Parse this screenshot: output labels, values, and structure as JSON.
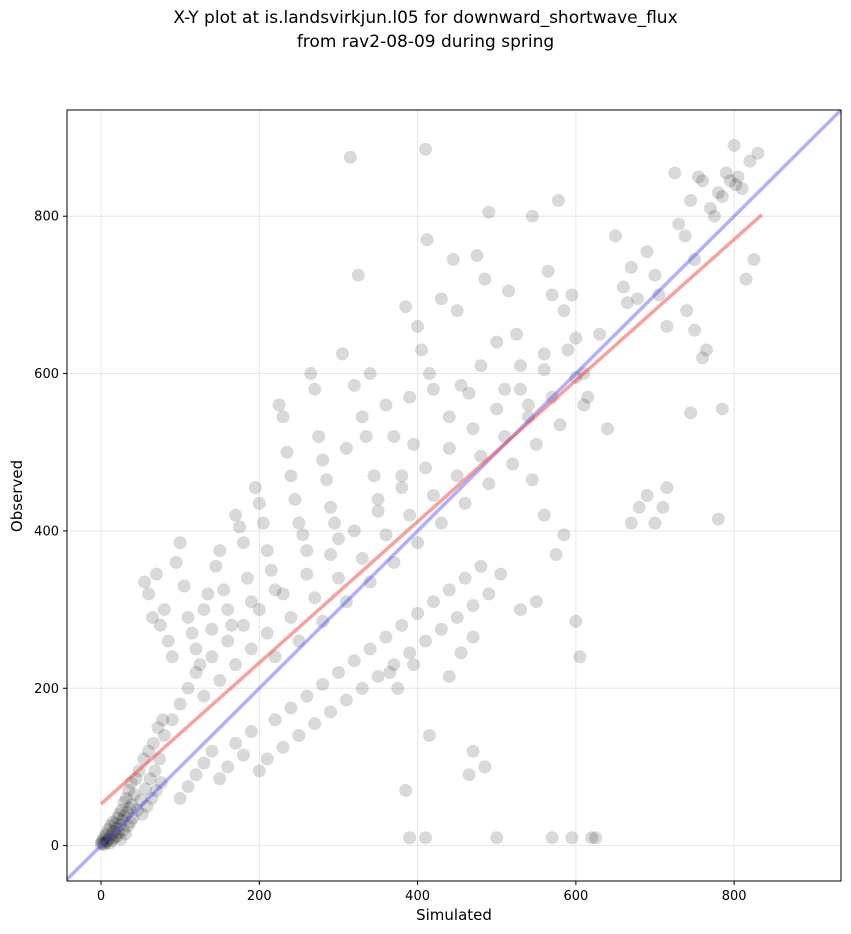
{
  "chart_data": {
    "type": "scatter",
    "title_line1": "X-Y plot at is.landsvirkjun.l05 for downward_shortwave_flux",
    "title_line2": "from rav2-08-09 during spring",
    "xlabel": "Simulated",
    "ylabel": "Observed",
    "xlim": [
      -43,
      935
    ],
    "ylim": [
      -45,
      935
    ],
    "xticks": [
      0,
      200,
      400,
      600,
      800
    ],
    "yticks": [
      0,
      200,
      400,
      600,
      800
    ],
    "grid": true,
    "colors": {
      "points": "#000000",
      "fit_line": "#ef4444",
      "one_to_one": "#4f4fff"
    },
    "fit_line": {
      "x": [
        0,
        835
      ],
      "y": [
        53,
        802
      ]
    },
    "one_to_one_line": {
      "x": [
        -43,
        935
      ],
      "y": [
        -43,
        935
      ]
    },
    "points": [
      [
        0,
        2
      ],
      [
        1,
        5
      ],
      [
        2,
        3
      ],
      [
        3,
        8
      ],
      [
        4,
        1
      ],
      [
        5,
        12
      ],
      [
        6,
        4
      ],
      [
        7,
        15
      ],
      [
        8,
        6
      ],
      [
        9,
        20
      ],
      [
        10,
        9
      ],
      [
        11,
        3
      ],
      [
        12,
        25
      ],
      [
        13,
        14
      ],
      [
        14,
        7
      ],
      [
        15,
        30
      ],
      [
        16,
        18
      ],
      [
        17,
        10
      ],
      [
        18,
        28
      ],
      [
        19,
        22
      ],
      [
        20,
        12
      ],
      [
        21,
        35
      ],
      [
        22,
        16
      ],
      [
        23,
        40
      ],
      [
        24,
        26
      ],
      [
        25,
        8
      ],
      [
        26,
        45
      ],
      [
        27,
        32
      ],
      [
        28,
        20
      ],
      [
        29,
        55
      ],
      [
        30,
        38
      ],
      [
        31,
        15
      ],
      [
        32,
        60
      ],
      [
        33,
        42
      ],
      [
        34,
        25
      ],
      [
        35,
        70
      ],
      [
        36,
        48
      ],
      [
        37,
        30
      ],
      [
        38,
        80
      ],
      [
        39,
        52
      ],
      [
        40,
        35
      ],
      [
        42,
        65
      ],
      [
        44,
        85
      ],
      [
        46,
        45
      ],
      [
        48,
        95
      ],
      [
        50,
        58
      ],
      [
        52,
        40
      ],
      [
        54,
        110
      ],
      [
        56,
        72
      ],
      [
        58,
        50
      ],
      [
        60,
        120
      ],
      [
        62,
        85
      ],
      [
        64,
        60
      ],
      [
        66,
        130
      ],
      [
        68,
        95
      ],
      [
        70,
        70
      ],
      [
        72,
        150
      ],
      [
        74,
        110
      ],
      [
        76,
        80
      ],
      [
        78,
        160
      ],
      [
        55,
        335
      ],
      [
        60,
        320
      ],
      [
        70,
        345
      ],
      [
        80,
        300
      ],
      [
        75,
        280
      ],
      [
        65,
        290
      ],
      [
        85,
        260
      ],
      [
        90,
        240
      ],
      [
        95,
        360
      ],
      [
        100,
        385
      ],
      [
        105,
        330
      ],
      [
        110,
        290
      ],
      [
        115,
        270
      ],
      [
        120,
        250
      ],
      [
        125,
        230
      ],
      [
        130,
        300
      ],
      [
        135,
        320
      ],
      [
        140,
        275
      ],
      [
        145,
        355
      ],
      [
        150,
        375
      ],
      [
        155,
        325
      ],
      [
        160,
        300
      ],
      [
        165,
        280
      ],
      [
        170,
        420
      ],
      [
        175,
        405
      ],
      [
        180,
        385
      ],
      [
        185,
        340
      ],
      [
        190,
        310
      ],
      [
        195,
        455
      ],
      [
        200,
        435
      ],
      [
        205,
        410
      ],
      [
        210,
        375
      ],
      [
        215,
        350
      ],
      [
        220,
        325
      ],
      [
        225,
        560
      ],
      [
        230,
        545
      ],
      [
        235,
        500
      ],
      [
        240,
        470
      ],
      [
        245,
        440
      ],
      [
        250,
        410
      ],
      [
        255,
        395
      ],
      [
        260,
        375
      ],
      [
        265,
        600
      ],
      [
        270,
        580
      ],
      [
        275,
        520
      ],
      [
        280,
        490
      ],
      [
        285,
        465
      ],
      [
        290,
        430
      ],
      [
        295,
        410
      ],
      [
        300,
        390
      ],
      [
        305,
        625
      ],
      [
        310,
        505
      ],
      [
        315,
        875
      ],
      [
        320,
        585
      ],
      [
        325,
        725
      ],
      [
        330,
        545
      ],
      [
        335,
        520
      ],
      [
        340,
        600
      ],
      [
        345,
        470
      ],
      [
        350,
        440
      ],
      [
        360,
        560
      ],
      [
        370,
        520
      ],
      [
        380,
        470
      ],
      [
        385,
        685
      ],
      [
        390,
        570
      ],
      [
        395,
        510
      ],
      [
        400,
        660
      ],
      [
        405,
        630
      ],
      [
        410,
        885
      ],
      [
        412,
        770
      ],
      [
        415,
        600
      ],
      [
        420,
        580
      ],
      [
        430,
        695
      ],
      [
        440,
        545
      ],
      [
        445,
        745
      ],
      [
        450,
        680
      ],
      [
        455,
        585
      ],
      [
        465,
        575
      ],
      [
        475,
        750
      ],
      [
        480,
        610
      ],
      [
        485,
        720
      ],
      [
        490,
        805
      ],
      [
        500,
        640
      ],
      [
        510,
        580
      ],
      [
        515,
        705
      ],
      [
        525,
        650
      ],
      [
        530,
        610
      ],
      [
        540,
        560
      ],
      [
        545,
        800
      ],
      [
        560,
        625
      ],
      [
        565,
        730
      ],
      [
        570,
        700
      ],
      [
        578,
        820
      ],
      [
        585,
        680
      ],
      [
        595,
        700
      ],
      [
        600,
        645
      ],
      [
        610,
        600
      ],
      [
        615,
        570
      ],
      [
        630,
        650
      ],
      [
        650,
        775
      ],
      [
        660,
        710
      ],
      [
        665,
        690
      ],
      [
        670,
        735
      ],
      [
        678,
        695
      ],
      [
        690,
        755
      ],
      [
        700,
        725
      ],
      [
        705,
        700
      ],
      [
        715,
        660
      ],
      [
        725,
        855
      ],
      [
        730,
        790
      ],
      [
        738,
        775
      ],
      [
        745,
        820
      ],
      [
        750,
        745
      ],
      [
        755,
        850
      ],
      [
        760,
        845
      ],
      [
        765,
        630
      ],
      [
        770,
        810
      ],
      [
        775,
        800
      ],
      [
        780,
        830
      ],
      [
        785,
        825
      ],
      [
        790,
        855
      ],
      [
        795,
        845
      ],
      [
        800,
        890
      ],
      [
        802,
        840
      ],
      [
        805,
        850
      ],
      [
        810,
        835
      ],
      [
        815,
        720
      ],
      [
        820,
        870
      ],
      [
        825,
        745
      ],
      [
        830,
        880
      ],
      [
        80,
        140
      ],
      [
        90,
        160
      ],
      [
        100,
        180
      ],
      [
        110,
        200
      ],
      [
        120,
        220
      ],
      [
        130,
        190
      ],
      [
        140,
        240
      ],
      [
        150,
        210
      ],
      [
        160,
        260
      ],
      [
        170,
        230
      ],
      [
        180,
        280
      ],
      [
        190,
        250
      ],
      [
        200,
        300
      ],
      [
        210,
        270
      ],
      [
        220,
        240
      ],
      [
        230,
        320
      ],
      [
        240,
        290
      ],
      [
        250,
        260
      ],
      [
        260,
        345
      ],
      [
        270,
        315
      ],
      [
        280,
        285
      ],
      [
        290,
        370
      ],
      [
        300,
        340
      ],
      [
        310,
        310
      ],
      [
        320,
        400
      ],
      [
        330,
        365
      ],
      [
        340,
        335
      ],
      [
        350,
        425
      ],
      [
        360,
        395
      ],
      [
        370,
        360
      ],
      [
        380,
        455
      ],
      [
        390,
        420
      ],
      [
        400,
        385
      ],
      [
        410,
        480
      ],
      [
        420,
        445
      ],
      [
        430,
        410
      ],
      [
        440,
        505
      ],
      [
        450,
        470
      ],
      [
        460,
        435
      ],
      [
        470,
        530
      ],
      [
        480,
        495
      ],
      [
        490,
        460
      ],
      [
        500,
        555
      ],
      [
        510,
        520
      ],
      [
        520,
        485
      ],
      [
        530,
        580
      ],
      [
        540,
        545
      ],
      [
        550,
        510
      ],
      [
        560,
        605
      ],
      [
        570,
        570
      ],
      [
        580,
        535
      ],
      [
        590,
        630
      ],
      [
        600,
        595
      ],
      [
        610,
        560
      ],
      [
        100,
        60
      ],
      [
        110,
        75
      ],
      [
        120,
        90
      ],
      [
        130,
        105
      ],
      [
        140,
        120
      ],
      [
        150,
        85
      ],
      [
        160,
        100
      ],
      [
        170,
        130
      ],
      [
        180,
        115
      ],
      [
        190,
        145
      ],
      [
        200,
        95
      ],
      [
        210,
        110
      ],
      [
        220,
        160
      ],
      [
        230,
        125
      ],
      [
        240,
        175
      ],
      [
        250,
        140
      ],
      [
        260,
        190
      ],
      [
        270,
        155
      ],
      [
        280,
        205
      ],
      [
        290,
        170
      ],
      [
        300,
        220
      ],
      [
        310,
        185
      ],
      [
        320,
        235
      ],
      [
        330,
        200
      ],
      [
        340,
        250
      ],
      [
        350,
        215
      ],
      [
        360,
        265
      ],
      [
        370,
        230
      ],
      [
        380,
        280
      ],
      [
        390,
        245
      ],
      [
        400,
        295
      ],
      [
        410,
        260
      ],
      [
        420,
        310
      ],
      [
        430,
        275
      ],
      [
        440,
        325
      ],
      [
        450,
        290
      ],
      [
        460,
        340
      ],
      [
        470,
        305
      ],
      [
        480,
        355
      ],
      [
        490,
        320
      ],
      [
        390,
        10
      ],
      [
        410,
        10
      ],
      [
        500,
        10
      ],
      [
        570,
        10
      ],
      [
        595,
        10
      ],
      [
        620,
        10
      ],
      [
        625,
        10
      ],
      [
        385,
        70
      ],
      [
        415,
        140
      ],
      [
        465,
        90
      ],
      [
        470,
        120
      ],
      [
        485,
        100
      ],
      [
        505,
        345
      ],
      [
        530,
        300
      ],
      [
        550,
        310
      ],
      [
        600,
        285
      ],
      [
        605,
        240
      ],
      [
        640,
        530
      ],
      [
        670,
        410
      ],
      [
        680,
        430
      ],
      [
        690,
        445
      ],
      [
        700,
        410
      ],
      [
        710,
        430
      ],
      [
        715,
        455
      ],
      [
        745,
        550
      ],
      [
        780,
        415
      ],
      [
        785,
        555
      ],
      [
        760,
        620
      ],
      [
        740,
        680
      ],
      [
        750,
        655
      ],
      [
        365,
        220
      ],
      [
        375,
        200
      ],
      [
        395,
        230
      ],
      [
        440,
        215
      ],
      [
        455,
        245
      ],
      [
        470,
        265
      ],
      [
        545,
        465
      ],
      [
        560,
        420
      ],
      [
        575,
        370
      ],
      [
        585,
        395
      ]
    ]
  }
}
